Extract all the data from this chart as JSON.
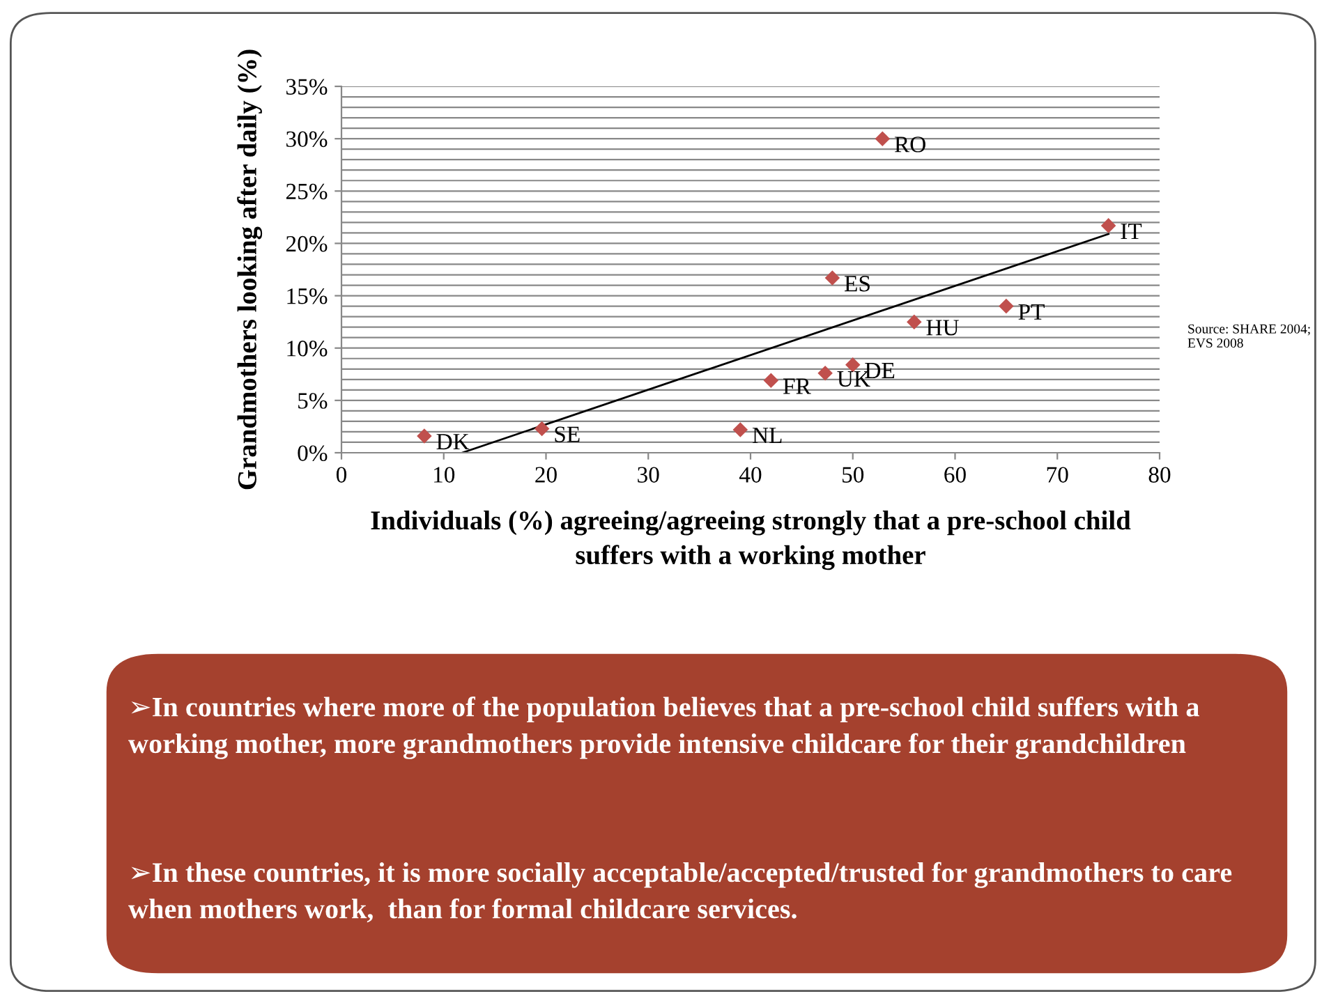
{
  "chart_data": {
    "type": "scatter",
    "xlabel": "Individuals (%) agreeing/agreeing strongly that a pre-school child suffers with a working mother",
    "ylabel": "Grandmothers looking after daily (%)",
    "series": [
      {
        "color": "#c0504d",
        "marker": "diamond",
        "x": [
          8.1,
          19.6,
          39.0,
          42.0,
          47.3,
          50.0,
          48.0,
          56.0,
          65.0,
          75.0,
          52.9
        ],
        "values": [
          1.6,
          2.3,
          2.2,
          6.9,
          7.6,
          8.4,
          16.7,
          12.5,
          14.0,
          21.7,
          30.0
        ]
      },
      {
        "type": "line",
        "color": "#000000",
        "marker": "none",
        "x": [
          11.8,
          75.0
        ],
        "values": [
          0,
          20.9
        ]
      }
    ],
    "xlim": [
      0,
      80
    ],
    "xticks": [
      0,
      10,
      20,
      30,
      40,
      50,
      60,
      70,
      80
    ],
    "ylim": [
      0,
      35
    ],
    "yticks": [
      {
        "value": 0,
        "label": "0%"
      },
      {
        "value": 1,
        "label": null
      },
      {
        "value": 2,
        "label": null
      },
      {
        "value": 3,
        "label": null
      },
      {
        "value": 4,
        "label": null
      },
      {
        "value": 5,
        "label": "5%"
      },
      {
        "value": 6,
        "label": null
      },
      {
        "value": 7,
        "label": null
      },
      {
        "value": 8,
        "label": null
      },
      {
        "value": 9,
        "label": null
      },
      {
        "value": 10,
        "label": "10%"
      },
      {
        "value": 11,
        "label": null
      },
      {
        "value": 12,
        "label": null
      },
      {
        "value": 13,
        "label": null
      },
      {
        "value": 14,
        "label": null
      },
      {
        "value": 15,
        "label": "15%"
      },
      {
        "value": 16,
        "label": null
      },
      {
        "value": 17,
        "label": null
      },
      {
        "value": 18,
        "label": null
      },
      {
        "value": 19,
        "label": null
      },
      {
        "value": 20,
        "label": "20%"
      },
      {
        "value": 21,
        "label": null
      },
      {
        "value": 22,
        "label": null
      },
      {
        "value": 23,
        "label": null
      },
      {
        "value": 24,
        "label": null
      },
      {
        "value": 25,
        "label": "25%"
      },
      {
        "value": 26,
        "label": null
      },
      {
        "value": 27,
        "label": null
      },
      {
        "value": 28,
        "label": null
      },
      {
        "value": 29,
        "label": null
      },
      {
        "value": 30,
        "label": "30%"
      },
      {
        "value": 31,
        "label": null
      },
      {
        "value": 32,
        "label": null
      },
      {
        "value": 33,
        "label": null
      },
      {
        "value": 34,
        "label": null
      },
      {
        "value": 35,
        "label": "35%"
      }
    ],
    "grid": "y",
    "annotations": [
      {
        "text": "DK",
        "x": 8.1,
        "y": 1.6
      },
      {
        "text": "SE",
        "x": 19.6,
        "y": 2.3
      },
      {
        "text": "NL",
        "x": 39.0,
        "y": 2.2
      },
      {
        "text": "FR",
        "x": 42.0,
        "y": 6.9
      },
      {
        "text": "UK",
        "x": 47.3,
        "y": 7.6
      },
      {
        "text": "DE",
        "x": 50.0,
        "y": 8.4
      },
      {
        "text": "ES",
        "x": 48.0,
        "y": 16.7
      },
      {
        "text": "HU",
        "x": 56.0,
        "y": 12.5
      },
      {
        "text": "PT",
        "x": 65.0,
        "y": 14.0
      },
      {
        "text": "IT",
        "x": 75.0,
        "y": 21.7
      },
      {
        "text": "RO",
        "x": 52.9,
        "y": 30.0
      },
      "Source: SHARE 2004; EVS 2008",
      "➢In countries where more of the population believes that a pre-school child suffers with a working mother, more grandmothers provide intensive childcare for their grandchildren",
      "➢In these countries, it is more socially acceptable/accepted/trusted for grandmothers to care when mothers work,  than for formal childcare services."
    ]
  }
}
